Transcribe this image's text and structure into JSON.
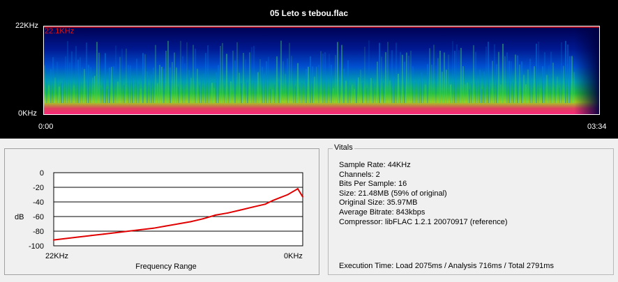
{
  "spectrogram": {
    "title": "05 Leto s tebou.flac",
    "y_top_label": "22KHz",
    "y_bottom_label": "0KHz",
    "x_start_label": "0:00",
    "x_end_label": "03:34",
    "peak_label": "22.1KHz"
  },
  "frequency_panel": {
    "ylabel": "dB",
    "xlabel": "Frequency Range"
  },
  "chart_data": {
    "type": "line",
    "xlabel": "Frequency Range",
    "ylabel": "dB",
    "ylim": [
      -100,
      0
    ],
    "yticks": [
      "0",
      "-20",
      "-40",
      "-60",
      "-80",
      "-100"
    ],
    "xtick_labels": [
      "22KHz",
      "0KHz"
    ],
    "grid": true,
    "series": [
      {
        "color": "#e00000",
        "x": [
          0,
          0.05,
          0.1,
          0.15,
          0.2,
          0.25,
          0.3,
          0.35,
          0.4,
          0.45,
          0.5,
          0.55,
          0.6,
          0.65,
          0.7,
          0.75,
          0.8,
          0.85,
          0.88,
          0.91,
          0.94,
          0.96,
          0.98,
          1.0
        ],
        "y": [
          -92,
          -90,
          -88,
          -86,
          -84,
          -82,
          -80,
          -78,
          -76,
          -73,
          -70,
          -67,
          -63,
          -58,
          -55,
          -51,
          -47,
          -43,
          -38,
          -34,
          -30,
          -26,
          -22,
          -33
        ]
      }
    ]
  },
  "vitals": {
    "legend": "Vitals",
    "sample_rate": "Sample Rate: 44KHz",
    "channels": "Channels: 2",
    "bits_per_sample": "Bits Per Sample: 16",
    "size": "Size: 21.48MB (59% of original)",
    "original_size": "Original Size: 35.97MB",
    "average_bitrate": "Average Bitrate: 843kbps",
    "compressor": "Compressor: libFLAC 1.2.1 20070917 (reference)",
    "execution_time": "Execution Time: Load 2075ms / Analysis 716ms / Total 2791ms"
  },
  "colors": {
    "spectro_background": "#000000",
    "spectro_low": "#000080",
    "spectro_mid": "#00c060",
    "spectro_high": "#ff2020",
    "curve": "#e00000"
  }
}
